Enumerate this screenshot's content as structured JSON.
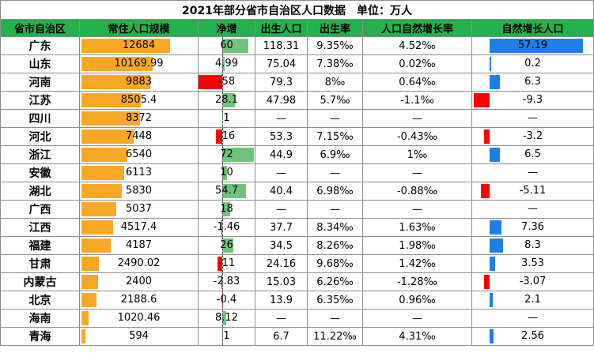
{
  "title": "2021年部分省市自治区人口数据　单位：万人",
  "columns": [
    "省市自治区",
    "常住人口规模",
    "净增",
    "出生人口",
    "出生率",
    "人口自然增长率",
    "自然增长人口"
  ],
  "rows": [
    {
      "province": "广东",
      "population": 12684,
      "population_label": "12684",
      "net_increase": 60,
      "net_label": "60",
      "births": "118.31",
      "birth_rate": "9.35‰",
      "nat_growth_rate": "4.52‰",
      "nat_growth": 57.19,
      "nat_growth_label": "57.19"
    },
    {
      "province": "山东",
      "population": 10169.99,
      "population_label": "10169.99",
      "net_increase": 4.99,
      "net_label": "4.99",
      "births": "75.04",
      "birth_rate": "7.38‰",
      "nat_growth_rate": "0.02‰",
      "nat_growth": 0.2,
      "nat_growth_label": "0.2"
    },
    {
      "province": "河南",
      "population": 9883,
      "population_label": "9883",
      "net_increase": -58,
      "net_label": "-58",
      "births": "79.3",
      "birth_rate": "8‰",
      "nat_growth_rate": "0.64‰",
      "nat_growth": 6.3,
      "nat_growth_label": "6.3"
    },
    {
      "province": "江苏",
      "population": 8505.4,
      "population_label": "8505.4",
      "net_increase": 28.1,
      "net_label": "28.1",
      "births": "47.98",
      "birth_rate": "5.7‰",
      "nat_growth_rate": "-1.1‰",
      "nat_growth": -9.3,
      "nat_growth_label": "-9.3"
    },
    {
      "province": "四川",
      "population": 8372,
      "population_label": "8372",
      "net_increase": 1,
      "net_label": "1",
      "births": "—",
      "birth_rate": "—",
      "nat_growth_rate": "—",
      "nat_growth": null,
      "nat_growth_label": "—"
    },
    {
      "province": "河北",
      "population": 7448,
      "population_label": "7448",
      "net_increase": -16,
      "net_label": "-16",
      "births": "53.3",
      "birth_rate": "7.15‰",
      "nat_growth_rate": "-0.43‰",
      "nat_growth": -3.2,
      "nat_growth_label": "-3.2"
    },
    {
      "province": "浙江",
      "population": 6540,
      "population_label": "6540",
      "net_increase": 72,
      "net_label": "72",
      "births": "44.9",
      "birth_rate": "6.9‰",
      "nat_growth_rate": "1‰",
      "nat_growth": 6.5,
      "nat_growth_label": "6.5"
    },
    {
      "province": "安徽",
      "population": 6113,
      "population_label": "6113",
      "net_increase": 10,
      "net_label": "10",
      "births": "—",
      "birth_rate": "—",
      "nat_growth_rate": "—",
      "nat_growth": null,
      "nat_growth_label": "—"
    },
    {
      "province": "湖北",
      "population": 5830,
      "population_label": "5830",
      "net_increase": 54.7,
      "net_label": "54.7",
      "births": "40.4",
      "birth_rate": "6.98‰",
      "nat_growth_rate": "-0.88‰",
      "nat_growth": -5.11,
      "nat_growth_label": "-5.11"
    },
    {
      "province": "广西",
      "population": 5037,
      "population_label": "5037",
      "net_increase": 18,
      "net_label": "18",
      "births": "—",
      "birth_rate": "—",
      "nat_growth_rate": "—",
      "nat_growth": null,
      "nat_growth_label": "—"
    },
    {
      "province": "江西",
      "population": 4517.4,
      "population_label": "4517.4",
      "net_increase": -1.46,
      "net_label": "-1.46",
      "births": "37.7",
      "birth_rate": "8.34‰",
      "nat_growth_rate": "1.63‰",
      "nat_growth": 7.36,
      "nat_growth_label": "7.36"
    },
    {
      "province": "福建",
      "population": 4187,
      "population_label": "4187",
      "net_increase": 26,
      "net_label": "26",
      "births": "34.5",
      "birth_rate": "8.26‰",
      "nat_growth_rate": "1.98‰",
      "nat_growth": 8.3,
      "nat_growth_label": "8.3"
    },
    {
      "province": "甘肃",
      "population": 2490.02,
      "population_label": "2490.02",
      "net_increase": -11,
      "net_label": "-11",
      "births": "24.16",
      "birth_rate": "9.68‰",
      "nat_growth_rate": "1.42‰",
      "nat_growth": 3.53,
      "nat_growth_label": "3.53"
    },
    {
      "province": "内蒙古",
      "population": 2400,
      "population_label": "2400",
      "net_increase": -2.83,
      "net_label": "-2.83",
      "births": "15.03",
      "birth_rate": "6.26‰",
      "nat_growth_rate": "-1.28‰",
      "nat_growth": -3.07,
      "nat_growth_label": "-3.07"
    },
    {
      "province": "北京",
      "population": 2188.6,
      "population_label": "2188.6",
      "net_increase": -0.4,
      "net_label": "-0.4",
      "births": "13.9",
      "birth_rate": "6.35‰",
      "nat_growth_rate": "0.96‰",
      "nat_growth": 2.1,
      "nat_growth_label": "2.1"
    },
    {
      "province": "海南",
      "population": 1020.46,
      "population_label": "1020.46",
      "net_increase": 8.12,
      "net_label": "8.12",
      "births": "—",
      "birth_rate": "—",
      "nat_growth_rate": "—",
      "nat_growth": null,
      "nat_growth_label": "—"
    },
    {
      "province": "青海",
      "population": 594,
      "population_label": "594",
      "net_increase": 1,
      "net_label": "1",
      "births": "6.7",
      "birth_rate": "11.22‰",
      "nat_growth_rate": "4.31‰",
      "nat_growth": 2.56,
      "nat_growth_label": "2.56"
    }
  ],
  "colors": {
    "header": "#22b14c",
    "population_bar": "#f9a825",
    "positive_net": "#70c47a",
    "negative": "#ff0000",
    "positive_growth": "#1e7fe8"
  }
}
